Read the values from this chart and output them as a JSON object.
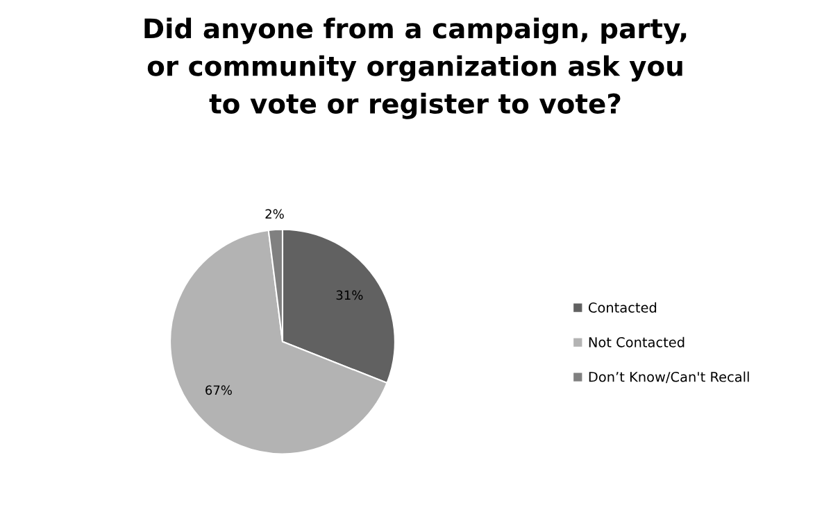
{
  "chart_data": {
    "type": "pie",
    "title": "Did anyone from a campaign, party,\nor community organization ask you\nto vote or register to vote?",
    "categories": [
      "Contacted",
      "Not Contacted",
      "Don’t Know/Can't Recall"
    ],
    "values": [
      31,
      67,
      2
    ],
    "value_labels": [
      "31%",
      "67%",
      "2%"
    ],
    "colors": [
      "#616161",
      "#b3b3b3",
      "#808080"
    ],
    "legend": "right"
  }
}
